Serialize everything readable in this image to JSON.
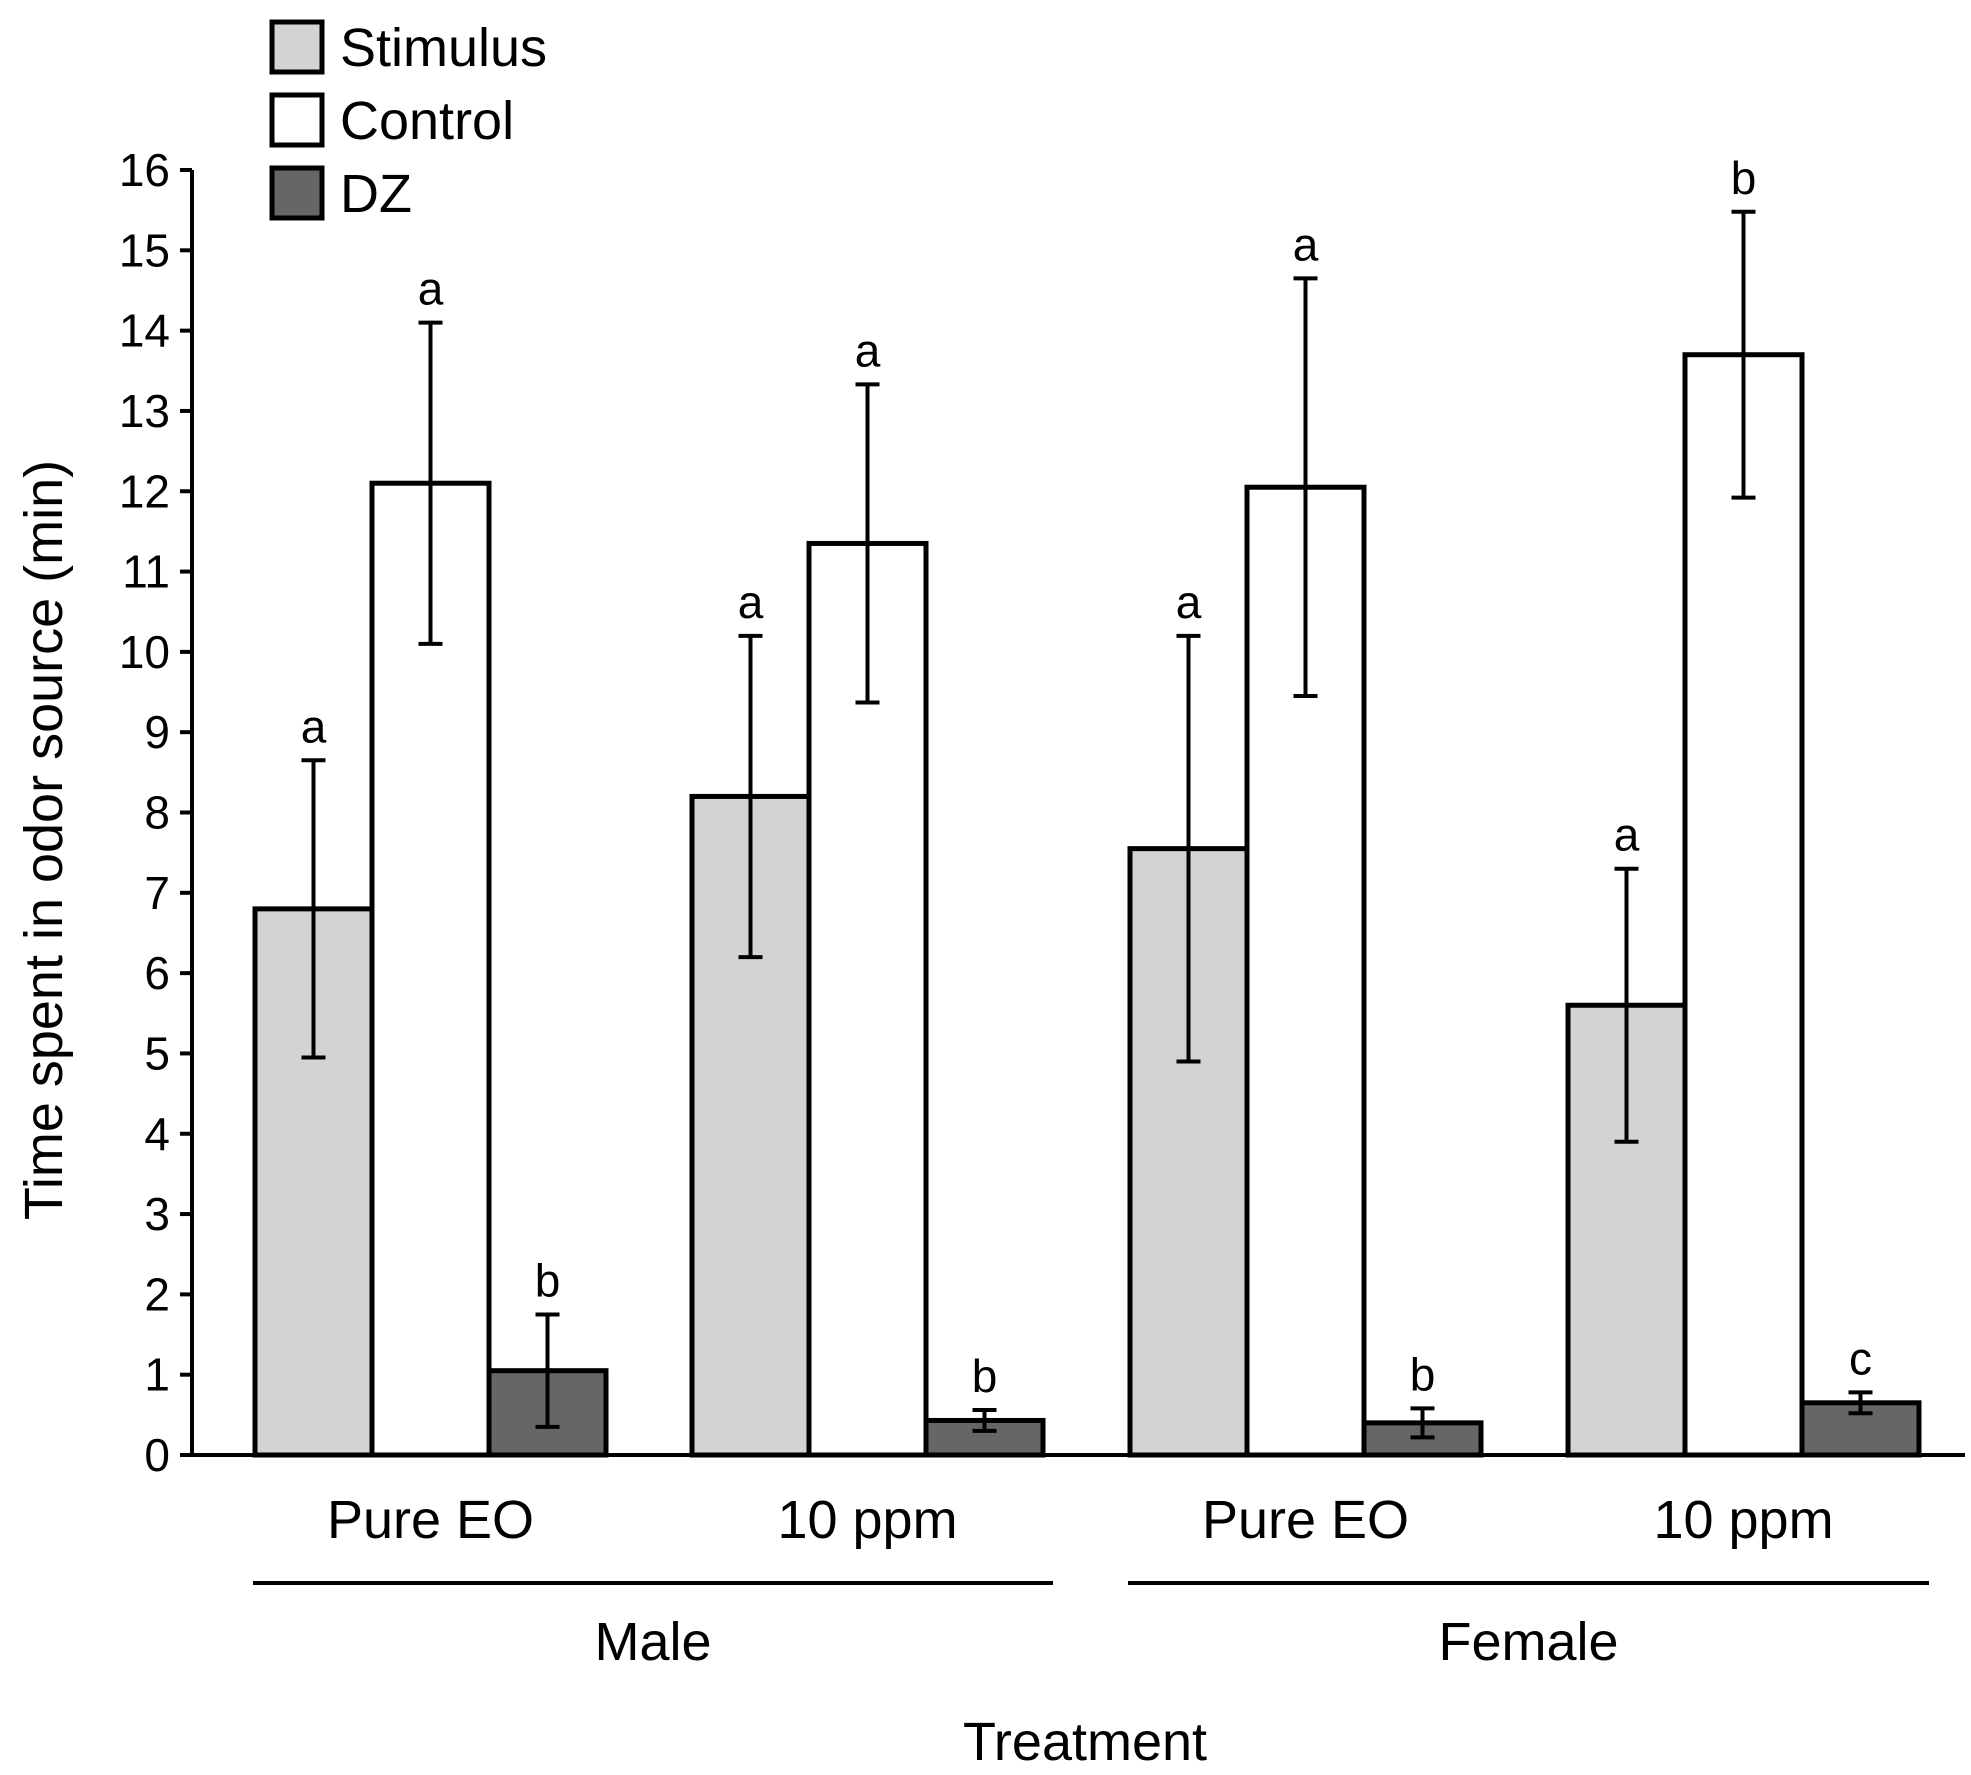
{
  "chart_data": {
    "type": "bar",
    "title": "",
    "xlabel": "Treatment",
    "ylabel": "Time spent in odor source (min)",
    "ylim": [
      0,
      16
    ],
    "yticks": [
      0,
      1,
      2,
      3,
      4,
      5,
      6,
      7,
      8,
      9,
      10,
      11,
      12,
      13,
      14,
      15,
      16
    ],
    "categories": [
      "Pure EO",
      "10 ppm",
      "Pure EO",
      "10 ppm"
    ],
    "groups": [
      {
        "label": "Male",
        "categories": [
          0,
          1
        ]
      },
      {
        "label": "Female",
        "categories": [
          2,
          3
        ]
      }
    ],
    "series": [
      {
        "name": "Stimulus",
        "color": "#d3d3d3",
        "values": [
          6.8,
          8.2,
          7.55,
          5.6
        ],
        "errors": [
          1.85,
          2.0,
          2.65,
          1.7
        ],
        "labels": [
          "a",
          "a",
          "a",
          "a"
        ]
      },
      {
        "name": "Control",
        "color": "#ffffff",
        "values": [
          12.1,
          11.35,
          12.05,
          13.7
        ],
        "errors": [
          2.0,
          1.98,
          2.6,
          1.78
        ],
        "labels": [
          "a",
          "a",
          "a",
          "b"
        ]
      },
      {
        "name": "DZ",
        "color": "#666666",
        "values": [
          1.05,
          0.43,
          0.4,
          0.65
        ],
        "errors": [
          0.7,
          0.13,
          0.18,
          0.13
        ],
        "labels": [
          "b",
          "b",
          "b",
          "c"
        ]
      }
    ],
    "legend": {
      "position": "top-left",
      "entries": [
        "Stimulus",
        "Control",
        "DZ"
      ]
    },
    "grid": false
  }
}
